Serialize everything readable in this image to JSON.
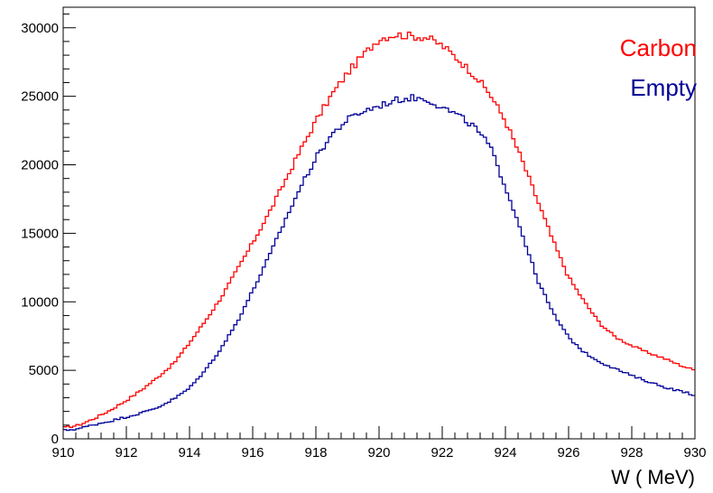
{
  "chart_data": {
    "type": "line",
    "style": "step-histogram",
    "xlabel": "W ( MeV)",
    "ylabel": "",
    "title": "",
    "xlim": [
      910,
      930
    ],
    "ylim": [
      0,
      31500
    ],
    "x_ticks": [
      910,
      912,
      914,
      916,
      918,
      920,
      922,
      924,
      926,
      928,
      930
    ],
    "y_ticks": [
      0,
      5000,
      10000,
      15000,
      20000,
      25000,
      30000
    ],
    "grid": false,
    "legend_position": "top-right",
    "series": [
      {
        "name": "Carbon",
        "color": "#ff0000",
        "x": [
          910,
          910.5,
          911,
          911.5,
          912,
          912.5,
          913,
          913.5,
          914,
          914.5,
          915,
          915.5,
          916,
          916.5,
          917,
          917.5,
          918,
          918.5,
          919,
          919.5,
          920,
          920.5,
          921,
          921.5,
          922,
          922.5,
          923,
          923.5,
          924,
          924.5,
          925,
          925.5,
          926,
          926.5,
          927,
          927.5,
          928,
          928.5,
          929,
          929.5,
          930
        ],
        "values": [
          800,
          1000,
          1500,
          2100,
          2800,
          3600,
          4500,
          5500,
          7000,
          8600,
          10300,
          12300,
          14300,
          16400,
          18700,
          21000,
          23200,
          25100,
          26700,
          28000,
          29200,
          29500,
          29400,
          29300,
          28700,
          27700,
          26600,
          25200,
          23200,
          20500,
          17500,
          14500,
          11800,
          10000,
          8400,
          7400,
          6800,
          6300,
          5900,
          5400,
          5000
        ]
      },
      {
        "name": "Empty",
        "color": "#000099",
        "x": [
          910,
          910.5,
          911,
          911.5,
          912,
          912.5,
          913,
          913.5,
          914,
          914.5,
          915,
          915.5,
          916,
          916.5,
          917,
          917.5,
          918,
          918.5,
          919,
          919.5,
          920,
          920.5,
          921,
          921.5,
          922,
          922.5,
          923,
          923.5,
          924,
          924.5,
          925,
          925.5,
          926,
          926.5,
          927,
          927.5,
          928,
          928.5,
          929,
          929.5,
          930
        ],
        "values": [
          600,
          750,
          1050,
          1300,
          1600,
          1900,
          2300,
          2900,
          3700,
          5000,
          6600,
          8500,
          10800,
          13200,
          15800,
          18300,
          20500,
          22200,
          23300,
          23900,
          24300,
          24700,
          24900,
          24800,
          24200,
          23600,
          22800,
          21400,
          18400,
          15200,
          11700,
          9200,
          7400,
          6300,
          5600,
          5100,
          4600,
          4200,
          3800,
          3500,
          3200
        ]
      }
    ]
  }
}
